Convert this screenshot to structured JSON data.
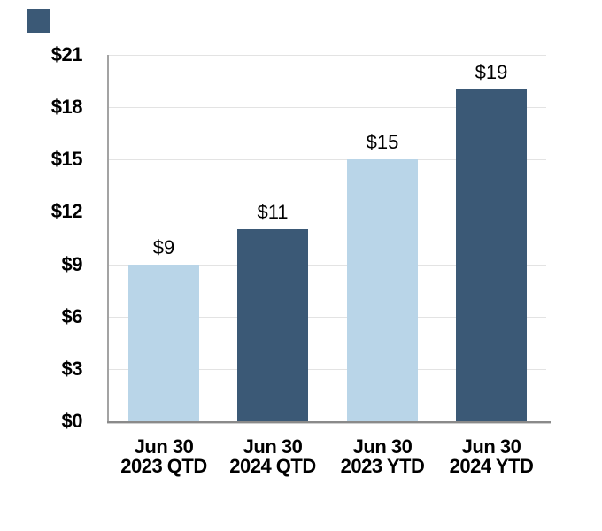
{
  "artifact_square": {
    "color": "#3B5976"
  },
  "chart_data": {
    "type": "bar",
    "title": "",
    "xlabel": "",
    "ylabel": "",
    "categories": [
      [
        "Jun 30",
        "2023 QTD"
      ],
      [
        "Jun 30",
        "2024 QTD"
      ],
      [
        "Jun 30",
        "2023 YTD"
      ],
      [
        "Jun 30",
        "2024 YTD"
      ]
    ],
    "values": [
      9,
      11,
      15,
      19
    ],
    "value_labels": [
      "$9",
      "$11",
      "$15",
      "$19"
    ],
    "bar_colors": [
      "#B9D5E8",
      "#3B5976",
      "#B9D5E8",
      "#3B5976"
    ],
    "y_tick_values": [
      0,
      3,
      6,
      9,
      12,
      15,
      18,
      21
    ],
    "y_tick_labels": [
      "$0",
      "$3",
      "$6",
      "$9",
      "$12",
      "$15",
      "$18",
      "$21"
    ],
    "ylim": [
      0,
      21
    ],
    "grid": true,
    "gridline_color": "#E3E3E3",
    "y_axis_color": "#A3A3A3",
    "x_axis_color": "#8A8A8A",
    "legend": "none"
  }
}
